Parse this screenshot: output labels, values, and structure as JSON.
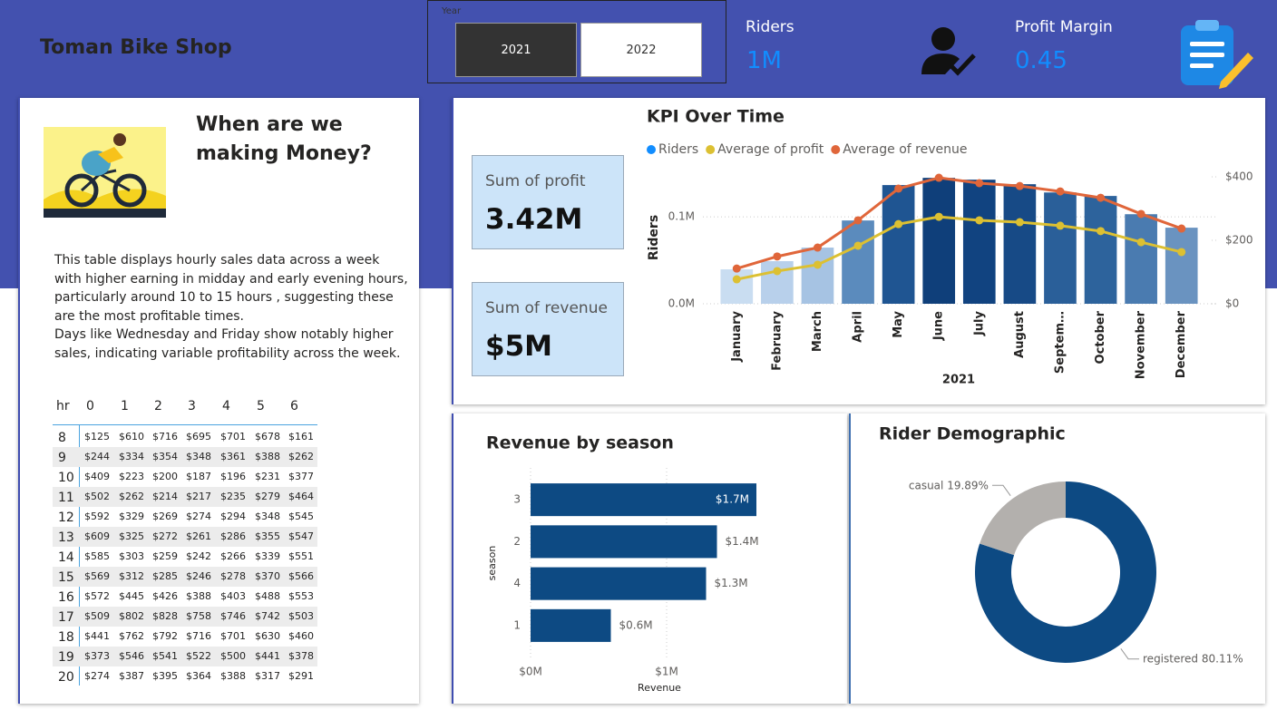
{
  "header": {
    "title": "Toman Bike Shop"
  },
  "slicer": {
    "label": "Year",
    "options": [
      "2021",
      "2022"
    ],
    "selected": "2021"
  },
  "kpis": [
    {
      "label": "Riders",
      "value": "1M"
    },
    {
      "label": "Profit Margin",
      "value": "0.45"
    }
  ],
  "intro": {
    "heading": "When are we making Money?",
    "paragraphs": [
      "This table displays hourly sales data across a week with higher earning in midday and early evening hours, particularly around 10 to 15 hours , suggesting these are the most profitable times.",
      "Days like Wednesday and Friday show notably higher sales, indicating variable profitability across the week."
    ]
  },
  "table": {
    "header": [
      "hr",
      "0",
      "1",
      "2",
      "3",
      "4",
      "5",
      "6"
    ],
    "rows": [
      [
        "8",
        "$125",
        "$610",
        "$716",
        "$695",
        "$701",
        "$678",
        "$161"
      ],
      [
        "9",
        "$244",
        "$334",
        "$354",
        "$348",
        "$361",
        "$388",
        "$262"
      ],
      [
        "10",
        "$409",
        "$223",
        "$200",
        "$187",
        "$196",
        "$231",
        "$377"
      ],
      [
        "11",
        "$502",
        "$262",
        "$214",
        "$217",
        "$235",
        "$279",
        "$464"
      ],
      [
        "12",
        "$592",
        "$329",
        "$269",
        "$274",
        "$294",
        "$348",
        "$545"
      ],
      [
        "13",
        "$609",
        "$325",
        "$272",
        "$261",
        "$286",
        "$355",
        "$547"
      ],
      [
        "14",
        "$585",
        "$303",
        "$259",
        "$242",
        "$266",
        "$339",
        "$551"
      ],
      [
        "15",
        "$569",
        "$312",
        "$285",
        "$246",
        "$278",
        "$370",
        "$566"
      ],
      [
        "16",
        "$572",
        "$445",
        "$426",
        "$388",
        "$403",
        "$488",
        "$553"
      ],
      [
        "17",
        "$509",
        "$802",
        "$828",
        "$758",
        "$746",
        "$742",
        "$503"
      ],
      [
        "18",
        "$441",
        "$762",
        "$792",
        "$716",
        "$701",
        "$630",
        "$460"
      ],
      [
        "19",
        "$373",
        "$546",
        "$541",
        "$522",
        "$500",
        "$441",
        "$378"
      ],
      [
        "20",
        "$274",
        "$387",
        "$395",
        "$364",
        "$388",
        "$317",
        "$291"
      ]
    ]
  },
  "cards": [
    {
      "label": "Sum of profit",
      "value": "3.42M"
    },
    {
      "label": "Sum of revenue",
      "value": "$5M"
    }
  ],
  "chart_data": [
    {
      "type": "combo",
      "title": "KPI Over Time",
      "categories": [
        "January",
        "February",
        "March",
        "April",
        "May",
        "June",
        "July",
        "August",
        "Septem…",
        "October",
        "November",
        "December"
      ],
      "x_label": "2021",
      "y_label": "Riders",
      "ylim": [
        0,
        0.146
      ],
      "yticks": [
        {
          "value": 0,
          "label": "0.0M"
        },
        {
          "value": 0.1,
          "label": "0.1M"
        }
      ],
      "y2lim": [
        0,
        400
      ],
      "y2ticks": [
        {
          "value": 0,
          "label": "$0"
        },
        {
          "value": 200,
          "label": "$200"
        },
        {
          "value": 400,
          "label": "$400"
        }
      ],
      "grid": true,
      "legend": "top-left",
      "series": [
        {
          "name": "Riders",
          "type": "bar",
          "color": "#118DFF",
          "colors": [
            "#c9ddf1",
            "#b8d0eb",
            "#a6c3e3",
            "#5b8bbd",
            "#1f5592",
            "#0f3f7a",
            "#114380",
            "#174a86",
            "#2a5f99",
            "#2d639c",
            "#4a7bb0",
            "#6a93c0"
          ],
          "values": [
            0.0396,
            0.049,
            0.0646,
            0.0958,
            0.1365,
            0.1448,
            0.1427,
            0.1375,
            0.128,
            0.124,
            0.103,
            0.0875
          ]
        },
        {
          "name": "Average of profit",
          "type": "line",
          "axis": "y2",
          "color": "#DCC032",
          "values": [
            77,
            103,
            123,
            183,
            251,
            274,
            263,
            257,
            246,
            229,
            194,
            163
          ]
        },
        {
          "name": "Average of revenue",
          "type": "line",
          "axis": "y2",
          "color": "#E0663A",
          "values": [
            111,
            149,
            177,
            263,
            363,
            397,
            380,
            371,
            354,
            334,
            283,
            237
          ]
        }
      ]
    },
    {
      "type": "hbar",
      "title": "Revenue by season",
      "categories": [
        "3",
        "2",
        "4",
        "1"
      ],
      "values": [
        1.66,
        1.37,
        1.29,
        0.59
      ],
      "value_labels": [
        "$1.7M",
        "$1.4M",
        "$1.3M",
        "$0.6M"
      ],
      "color": "#0D4A83",
      "x_label": "Revenue",
      "y_label": "season",
      "xlim": [
        0,
        1.7
      ],
      "xticks": [
        {
          "value": 0,
          "label": "$0M"
        },
        {
          "value": 1,
          "label": "$1M"
        }
      ],
      "grid": true
    },
    {
      "type": "donut",
      "title": "Rider Demographic",
      "categories": [
        "registered",
        "casual"
      ],
      "values": [
        80.11,
        19.89
      ],
      "value_labels": [
        "80.11%",
        "19.89%"
      ],
      "colors": [
        "#0D4A83",
        "#B3B0AD"
      ]
    }
  ]
}
